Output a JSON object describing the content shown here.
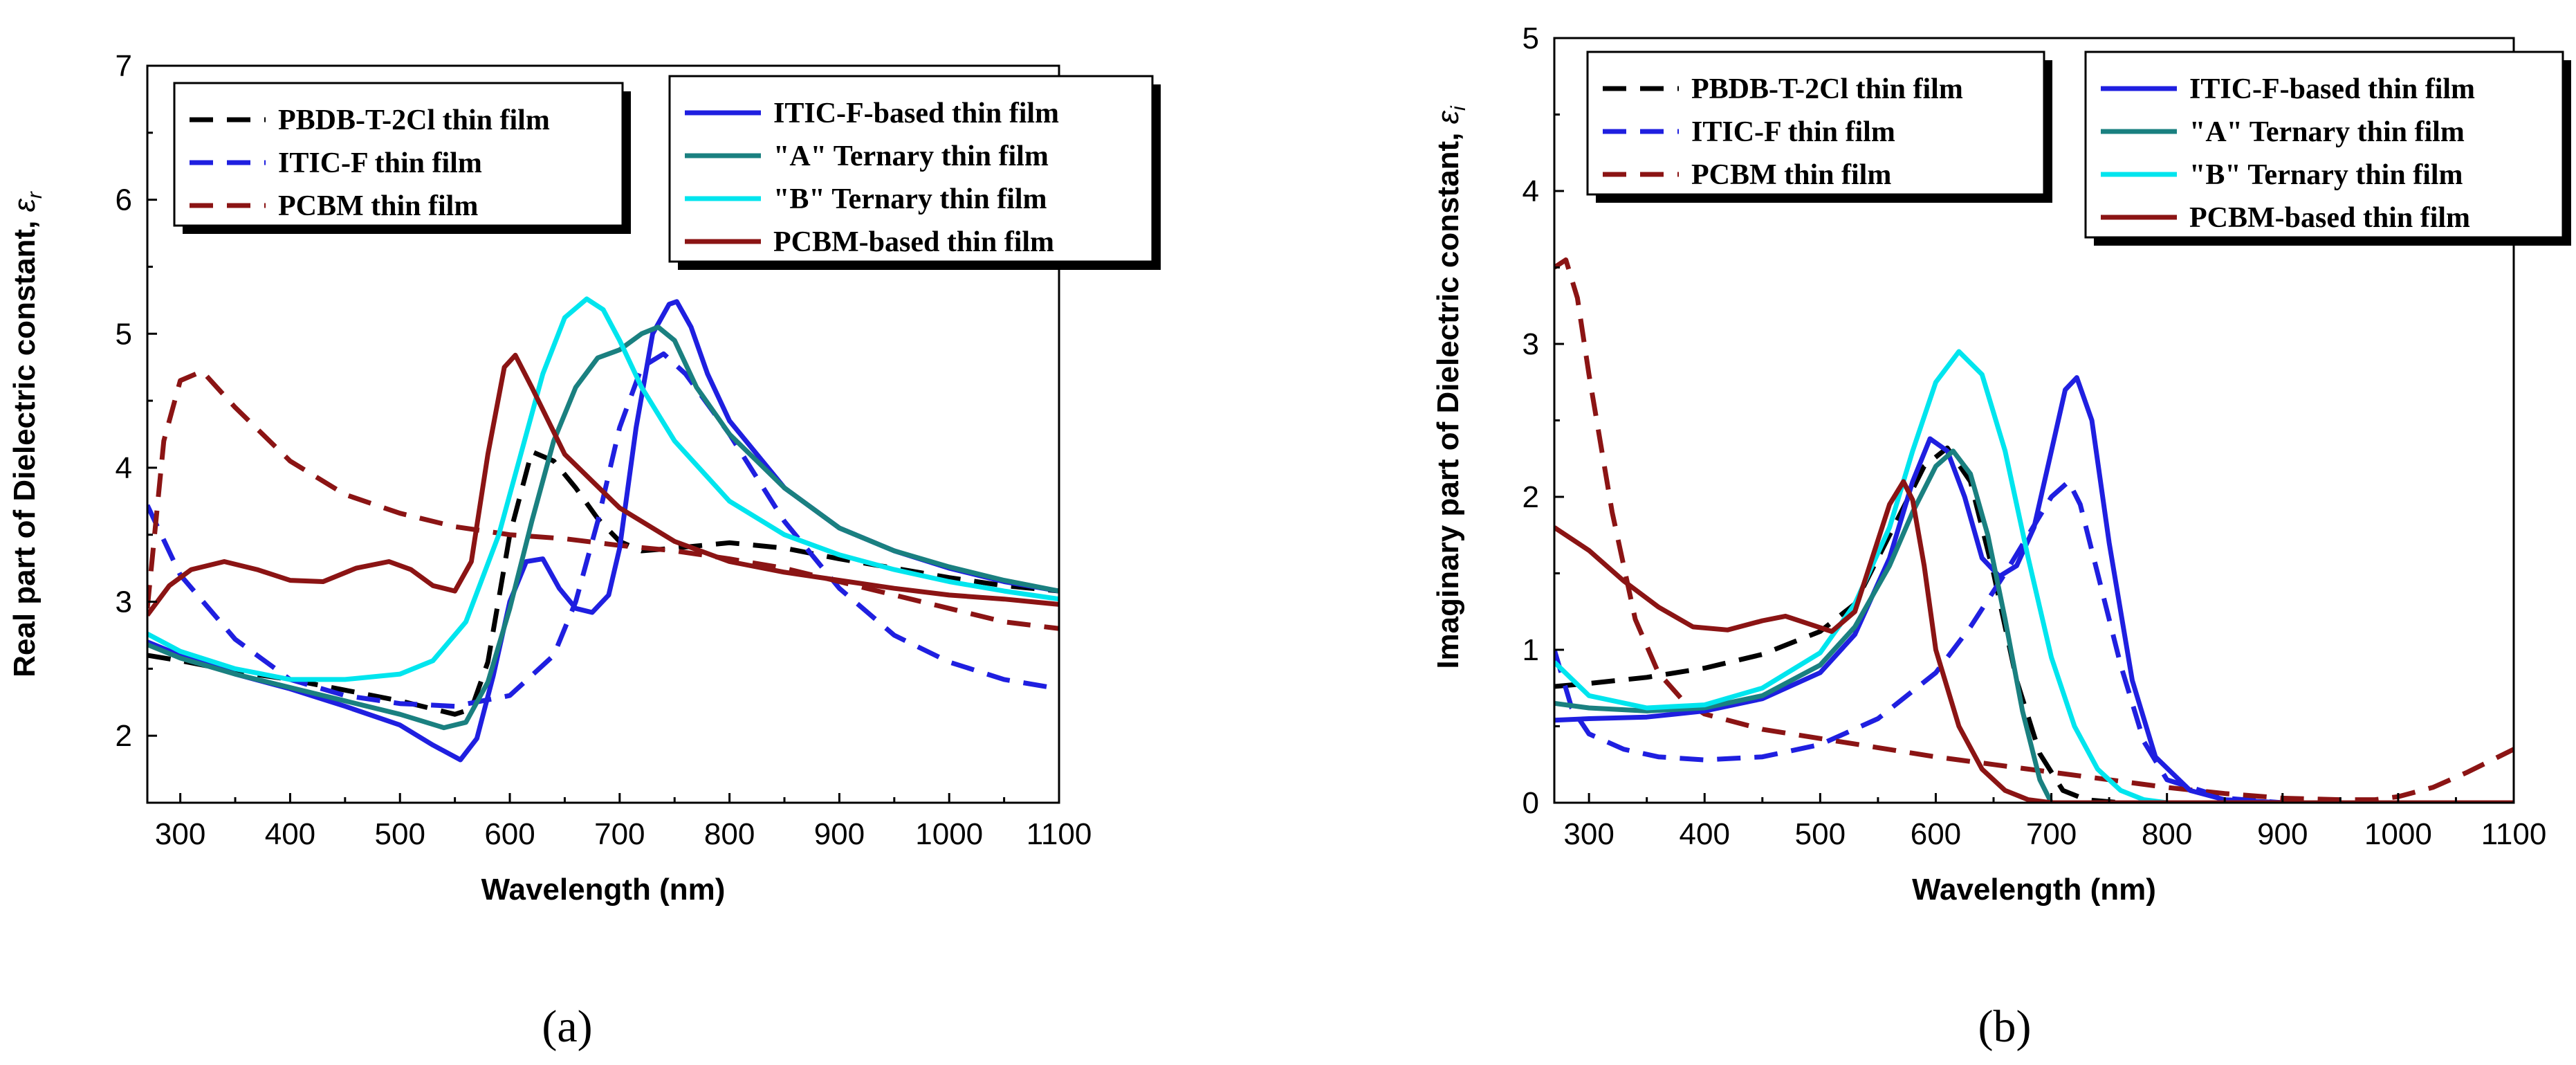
{
  "chart_data": [
    {
      "type": "line",
      "panel_caption": "(a)",
      "xlabel": "Wavelength (nm)",
      "ylabel": "Real part of Dielectric constant, ",
      "ylabel_symbol": "ε",
      "ylabel_subscript": "r",
      "xlim": [
        270,
        1100
      ],
      "ylim": [
        1.5,
        7
      ],
      "xticks": [
        300,
        400,
        500,
        600,
        700,
        800,
        900,
        1000,
        1100
      ],
      "yticks": [
        2,
        3,
        4,
        5,
        6,
        7
      ],
      "legend_left": [
        "s_pbdb",
        "s_iticf",
        "s_pcbm"
      ],
      "legend_right": [
        "s_iticb",
        "s_a",
        "s_b",
        "s_pcbmb"
      ],
      "series": [
        {
          "id": "s_pbdb",
          "name": "PBDB-T-2Cl thin film",
          "color": "#000000",
          "dash": true,
          "x": [
            270,
            300,
            350,
            400,
            450,
            500,
            550,
            565,
            580,
            600,
            620,
            640,
            660,
            680,
            700,
            720,
            750,
            800,
            850,
            900,
            950,
            1000,
            1050,
            1100
          ],
          "y": [
            2.6,
            2.56,
            2.48,
            2.42,
            2.34,
            2.26,
            2.16,
            2.2,
            2.55,
            3.5,
            4.12,
            4.05,
            3.85,
            3.62,
            3.45,
            3.38,
            3.4,
            3.44,
            3.4,
            3.32,
            3.25,
            3.18,
            3.12,
            3.08
          ]
        },
        {
          "id": "s_iticf",
          "name": "ITIC-F thin film",
          "color": "#1f1fe0",
          "dash": true,
          "x": [
            270,
            300,
            350,
            400,
            450,
            500,
            550,
            600,
            640,
            660,
            680,
            700,
            720,
            740,
            760,
            800,
            850,
            900,
            950,
            1000,
            1050,
            1100
          ],
          "y": [
            3.72,
            3.2,
            2.72,
            2.42,
            2.3,
            2.24,
            2.22,
            2.3,
            2.6,
            3.0,
            3.6,
            4.3,
            4.75,
            4.85,
            4.7,
            4.25,
            3.6,
            3.1,
            2.75,
            2.55,
            2.42,
            2.35
          ]
        },
        {
          "id": "s_pcbm",
          "name": "PCBM thin film",
          "color": "#8b1414",
          "dash": true,
          "x": [
            270,
            285,
            300,
            320,
            350,
            400,
            450,
            500,
            550,
            600,
            650,
            700,
            750,
            800,
            850,
            900,
            950,
            1000,
            1050,
            1100
          ],
          "y": [
            2.95,
            4.2,
            4.65,
            4.72,
            4.45,
            4.05,
            3.8,
            3.66,
            3.56,
            3.5,
            3.47,
            3.42,
            3.38,
            3.32,
            3.25,
            3.15,
            3.05,
            2.95,
            2.85,
            2.8
          ]
        },
        {
          "id": "s_iticb",
          "name": "ITIC-F-based thin film",
          "color": "#1f1fe0",
          "dash": false,
          "x": [
            270,
            300,
            350,
            400,
            450,
            500,
            530,
            555,
            570,
            585,
            600,
            615,
            630,
            645,
            660,
            675,
            690,
            700,
            715,
            730,
            745,
            752,
            765,
            780,
            800,
            850,
            900,
            950,
            1000,
            1050,
            1100
          ],
          "y": [
            2.7,
            2.6,
            2.46,
            2.35,
            2.22,
            2.08,
            1.93,
            1.82,
            1.98,
            2.45,
            3.0,
            3.3,
            3.32,
            3.1,
            2.95,
            2.92,
            3.05,
            3.4,
            4.3,
            5.0,
            5.22,
            5.24,
            5.05,
            4.7,
            4.35,
            3.85,
            3.55,
            3.38,
            3.25,
            3.15,
            3.08
          ]
        },
        {
          "id": "s_a",
          "name": "\"A\" Ternary thin film",
          "color": "#1a8080",
          "dash": false,
          "x": [
            270,
            300,
            350,
            400,
            450,
            500,
            540,
            560,
            580,
            600,
            620,
            640,
            660,
            680,
            700,
            720,
            735,
            750,
            770,
            800,
            850,
            900,
            950,
            1000,
            1050,
            1100
          ],
          "y": [
            2.68,
            2.58,
            2.46,
            2.36,
            2.26,
            2.16,
            2.06,
            2.1,
            2.4,
            2.95,
            3.6,
            4.2,
            4.6,
            4.82,
            4.88,
            5.0,
            5.05,
            4.95,
            4.6,
            4.25,
            3.85,
            3.55,
            3.38,
            3.26,
            3.16,
            3.08
          ]
        },
        {
          "id": "s_b",
          "name": "\"B\" Ternary thin film",
          "color": "#00e5ee",
          "dash": false,
          "x": [
            270,
            300,
            350,
            400,
            450,
            500,
            530,
            560,
            590,
            610,
            630,
            650,
            670,
            685,
            700,
            720,
            750,
            800,
            850,
            900,
            950,
            1000,
            1050,
            1100
          ],
          "y": [
            2.76,
            2.63,
            2.5,
            2.42,
            2.42,
            2.46,
            2.56,
            2.85,
            3.5,
            4.1,
            4.7,
            5.12,
            5.26,
            5.18,
            4.95,
            4.6,
            4.2,
            3.75,
            3.5,
            3.35,
            3.24,
            3.15,
            3.08,
            3.02
          ]
        },
        {
          "id": "s_pcbmb",
          "name": "PCBM-based thin film",
          "color": "#8b1414",
          "dash": false,
          "x": [
            270,
            290,
            310,
            340,
            370,
            400,
            430,
            460,
            490,
            510,
            530,
            550,
            565,
            580,
            595,
            605,
            620,
            650,
            700,
            750,
            800,
            850,
            900,
            950,
            1000,
            1050,
            1100
          ],
          "y": [
            2.9,
            3.12,
            3.24,
            3.3,
            3.24,
            3.16,
            3.15,
            3.25,
            3.3,
            3.24,
            3.12,
            3.08,
            3.3,
            4.1,
            4.75,
            4.84,
            4.6,
            4.1,
            3.7,
            3.45,
            3.3,
            3.22,
            3.16,
            3.1,
            3.05,
            3.02,
            2.98
          ]
        }
      ]
    },
    {
      "type": "line",
      "panel_caption": "(b)",
      "xlabel": "Wavelength (nm)",
      "ylabel": "Imaginary part of Dielectric constant, ",
      "ylabel_symbol": "ε",
      "ylabel_subscript": "i",
      "xlim": [
        270,
        1100
      ],
      "ylim": [
        0,
        5
      ],
      "xticks": [
        300,
        400,
        500,
        600,
        700,
        800,
        900,
        1000,
        1100
      ],
      "yticks": [
        0,
        1,
        2,
        3,
        4,
        5
      ],
      "legend_left": [
        "s_pbdb",
        "s_iticf",
        "s_pcbm"
      ],
      "legend_right": [
        "s_iticb",
        "s_a",
        "s_b",
        "s_pcbmb"
      ],
      "series": [
        {
          "id": "s_pbdb",
          "name": "PBDB-T-2Cl thin film",
          "color": "#000000",
          "dash": true,
          "x": [
            270,
            300,
            350,
            400,
            450,
            500,
            530,
            560,
            590,
            610,
            630,
            650,
            670,
            690,
            710,
            730,
            760,
            800,
            850,
            900,
            950,
            1000,
            1050,
            1100
          ],
          "y": [
            0.76,
            0.78,
            0.82,
            0.88,
            0.97,
            1.12,
            1.3,
            1.75,
            2.2,
            2.32,
            2.1,
            1.5,
            0.8,
            0.32,
            0.08,
            0.02,
            0.0,
            0.0,
            0.0,
            0.0,
            0.0,
            0.0,
            0.0,
            0.0
          ]
        },
        {
          "id": "s_iticf",
          "name": "ITIC-F thin film",
          "color": "#1f1fe0",
          "dash": true,
          "x": [
            270,
            285,
            300,
            330,
            360,
            400,
            450,
            500,
            550,
            600,
            630,
            660,
            680,
            700,
            715,
            725,
            740,
            760,
            780,
            800,
            850,
            900,
            950,
            1000,
            1050,
            1100
          ],
          "y": [
            1.0,
            0.62,
            0.45,
            0.35,
            0.3,
            0.28,
            0.3,
            0.38,
            0.55,
            0.85,
            1.15,
            1.5,
            1.75,
            2.0,
            2.1,
            1.95,
            1.5,
            0.9,
            0.4,
            0.15,
            0.03,
            0.0,
            0.0,
            0.0,
            0.0,
            0.0
          ]
        },
        {
          "id": "s_pcbm",
          "name": "PCBM thin film",
          "color": "#8b1414",
          "dash": true,
          "x": [
            270,
            280,
            290,
            300,
            320,
            340,
            360,
            380,
            400,
            450,
            500,
            550,
            600,
            650,
            700,
            750,
            800,
            850,
            900,
            950,
            980,
            1000,
            1030,
            1060,
            1100
          ],
          "y": [
            3.5,
            3.55,
            3.3,
            2.8,
            1.9,
            1.2,
            0.85,
            0.68,
            0.58,
            0.48,
            0.42,
            0.36,
            0.3,
            0.25,
            0.2,
            0.15,
            0.1,
            0.06,
            0.03,
            0.02,
            0.02,
            0.04,
            0.1,
            0.2,
            0.35
          ]
        },
        {
          "id": "s_iticb",
          "name": "ITIC-F-based thin film",
          "color": "#1f1fe0",
          "dash": false,
          "x": [
            270,
            300,
            350,
            400,
            450,
            500,
            530,
            560,
            580,
            595,
            610,
            625,
            640,
            655,
            670,
            685,
            700,
            712,
            722,
            735,
            750,
            770,
            790,
            820,
            850,
            900,
            1000,
            1100
          ],
          "y": [
            0.54,
            0.55,
            0.56,
            0.6,
            0.68,
            0.85,
            1.1,
            1.6,
            2.1,
            2.38,
            2.3,
            2.0,
            1.6,
            1.48,
            1.55,
            1.8,
            2.3,
            2.7,
            2.78,
            2.5,
            1.7,
            0.8,
            0.3,
            0.08,
            0.02,
            0.0,
            0.0,
            0.0
          ]
        },
        {
          "id": "s_a",
          "name": "\"A\" Ternary thin film",
          "color": "#1a8080",
          "dash": false,
          "x": [
            270,
            300,
            350,
            400,
            450,
            500,
            530,
            560,
            580,
            600,
            615,
            630,
            645,
            660,
            675,
            690,
            700,
            720,
            800,
            1100
          ],
          "y": [
            0.65,
            0.62,
            0.6,
            0.62,
            0.7,
            0.9,
            1.15,
            1.55,
            1.9,
            2.2,
            2.3,
            2.15,
            1.75,
            1.2,
            0.6,
            0.15,
            0.0,
            0.0,
            0.0,
            0.0
          ]
        },
        {
          "id": "s_b",
          "name": "\"B\" Ternary thin film",
          "color": "#00e5ee",
          "dash": false,
          "x": [
            270,
            300,
            350,
            400,
            450,
            500,
            530,
            560,
            580,
            600,
            620,
            640,
            660,
            680,
            700,
            720,
            740,
            760,
            780,
            800,
            850,
            1100
          ],
          "y": [
            0.92,
            0.7,
            0.62,
            0.64,
            0.75,
            0.98,
            1.3,
            1.8,
            2.3,
            2.75,
            2.95,
            2.8,
            2.3,
            1.6,
            0.95,
            0.5,
            0.22,
            0.08,
            0.02,
            0.0,
            0.0,
            0.0
          ]
        },
        {
          "id": "s_pcbmb",
          "name": "PCBM-based thin film",
          "color": "#8b1414",
          "dash": false,
          "x": [
            270,
            300,
            330,
            360,
            390,
            420,
            450,
            470,
            490,
            510,
            530,
            545,
            560,
            572,
            580,
            590,
            600,
            620,
            640,
            660,
            680,
            700,
            720,
            800,
            1100
          ],
          "y": [
            1.8,
            1.65,
            1.45,
            1.28,
            1.15,
            1.13,
            1.19,
            1.22,
            1.17,
            1.12,
            1.25,
            1.6,
            1.95,
            2.1,
            1.98,
            1.55,
            1.0,
            0.5,
            0.22,
            0.08,
            0.02,
            0.0,
            0.0,
            0.0,
            0.0
          ]
        }
      ]
    }
  ]
}
